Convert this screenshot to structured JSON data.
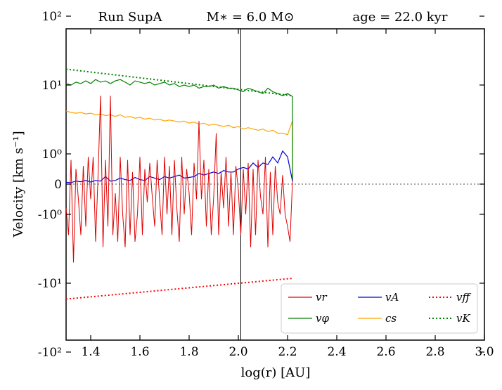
{
  "chart_data": {
    "type": "line",
    "title_parts": [
      "Run SupA",
      "M∗ = 6.0 M⊙",
      "age = 22.0 kyr"
    ],
    "xlabel": "log(r) [AU]",
    "ylabel": "Velocity [km s⁻¹]",
    "xlim": [
      1.3,
      3.0
    ],
    "yscale": "symlog",
    "ylim": [
      -100,
      100
    ],
    "x_ticks": [
      "1.4",
      "1.6",
      "1.8",
      "2.0",
      "2.2",
      "2.4",
      "2.6",
      "2.8",
      "3.0"
    ],
    "y_tick_labels": [
      "10²",
      "10¹",
      "10⁰",
      "0",
      "-10⁰",
      "-10¹",
      "-10²"
    ],
    "vertical_line_x": 2.01,
    "horizontal_zero_line": true,
    "series": [
      {
        "name": "v_r",
        "label": "vr",
        "color": "#e00000",
        "style": "solid",
        "x": [
          1.3,
          1.31,
          1.32,
          1.33,
          1.34,
          1.35,
          1.36,
          1.37,
          1.38,
          1.39,
          1.4,
          1.41,
          1.42,
          1.43,
          1.44,
          1.45,
          1.46,
          1.47,
          1.48,
          1.49,
          1.5,
          1.51,
          1.52,
          1.53,
          1.54,
          1.55,
          1.56,
          1.57,
          1.58,
          1.59,
          1.6,
          1.61,
          1.62,
          1.63,
          1.64,
          1.65,
          1.66,
          1.67,
          1.68,
          1.69,
          1.7,
          1.71,
          1.72,
          1.73,
          1.74,
          1.75,
          1.76,
          1.77,
          1.78,
          1.79,
          1.8,
          1.81,
          1.82,
          1.83,
          1.84,
          1.85,
          1.86,
          1.87,
          1.88,
          1.89,
          1.9,
          1.91,
          1.92,
          1.93,
          1.94,
          1.95,
          1.96,
          1.97,
          1.98,
          1.99,
          2.0,
          2.01,
          2.02,
          2.03,
          2.04,
          2.05,
          2.06,
          2.07,
          2.08,
          2.09,
          2.1,
          2.11,
          2.12,
          2.13,
          2.14,
          2.15,
          2.16,
          2.17,
          2.18,
          2.19,
          2.2,
          2.21,
          2.22
        ],
        "y": [
          -0.8,
          -2.0,
          0.8,
          -5.0,
          0.5,
          -0.5,
          -2.0,
          0.6,
          -1.5,
          0.9,
          -0.5,
          0.9,
          -2.5,
          0.3,
          7.0,
          -3.0,
          0.8,
          -1.5,
          7.0,
          -2.0,
          -0.3,
          -2.5,
          0.9,
          -1.0,
          -3.0,
          0.8,
          -2.0,
          0.4,
          -2.5,
          -1.0,
          0.9,
          -2.0,
          0.5,
          -0.6,
          0.7,
          -0.4,
          -1.5,
          0.8,
          -0.5,
          -2.0,
          0.9,
          -1.0,
          0.6,
          -2.0,
          0.8,
          -0.8,
          -2.5,
          0.9,
          -1.0,
          0.5,
          -0.3,
          -2.0,
          0.7,
          -0.5,
          3.0,
          -0.5,
          0.8,
          -1.5,
          0.5,
          -2.0,
          -0.4,
          2.0,
          -2.0,
          0.4,
          -0.8,
          0.9,
          -1.5,
          0.4,
          -2.0,
          0.6,
          -0.2,
          -2.0,
          0.5,
          -1.0,
          0.7,
          -3.0,
          0.5,
          -2.0,
          0.8,
          -0.4,
          -1.0,
          0.9,
          -3.0,
          0.4,
          -2.0,
          0.6,
          -0.6,
          -1.0,
          0.3,
          -1.0,
          -1.5,
          -2.5,
          0.1
        ]
      },
      {
        "name": "v_phi",
        "label": "vφ",
        "color": "#008000",
        "style": "solid",
        "x": [
          1.3,
          1.32,
          1.34,
          1.36,
          1.38,
          1.4,
          1.42,
          1.44,
          1.46,
          1.48,
          1.5,
          1.52,
          1.54,
          1.56,
          1.58,
          1.6,
          1.62,
          1.64,
          1.66,
          1.68,
          1.7,
          1.72,
          1.74,
          1.76,
          1.78,
          1.8,
          1.82,
          1.84,
          1.86,
          1.88,
          1.9,
          1.92,
          1.94,
          1.96,
          1.98,
          2.0,
          2.02,
          2.04,
          2.06,
          2.08,
          2.1,
          2.12,
          2.14,
          2.16,
          2.18,
          2.2,
          2.22,
          2.22
        ],
        "y": [
          10.5,
          10.0,
          11.0,
          10.5,
          11.5,
          10.5,
          12.0,
          11.0,
          11.5,
          10.5,
          11.5,
          12.0,
          11.0,
          10.0,
          11.5,
          11.0,
          10.5,
          11.0,
          10.0,
          10.5,
          11.0,
          10.0,
          10.5,
          9.5,
          10.0,
          9.5,
          10.0,
          9.0,
          9.5,
          9.5,
          10.0,
          9.0,
          9.5,
          9.0,
          9.0,
          8.5,
          8.0,
          9.0,
          8.5,
          8.0,
          7.5,
          9.0,
          8.0,
          7.5,
          7.0,
          7.5,
          6.8,
          0.1
        ]
      },
      {
        "name": "v_A",
        "label": "vA",
        "color": "#0000e0",
        "style": "solid",
        "x": [
          1.3,
          1.32,
          1.34,
          1.36,
          1.38,
          1.4,
          1.42,
          1.44,
          1.46,
          1.48,
          1.5,
          1.52,
          1.54,
          1.56,
          1.58,
          1.6,
          1.62,
          1.64,
          1.66,
          1.68,
          1.7,
          1.72,
          1.74,
          1.76,
          1.78,
          1.8,
          1.82,
          1.84,
          1.86,
          1.88,
          1.9,
          1.92,
          1.94,
          1.96,
          1.98,
          2.0,
          2.02,
          2.04,
          2.06,
          2.08,
          2.1,
          2.12,
          2.14,
          2.16,
          2.18,
          2.2,
          2.22
        ],
        "y": [
          0.06,
          0.05,
          0.1,
          0.08,
          0.12,
          0.07,
          0.12,
          0.1,
          0.25,
          0.1,
          0.12,
          0.2,
          0.15,
          0.12,
          0.22,
          0.15,
          0.12,
          0.25,
          0.2,
          0.15,
          0.25,
          0.2,
          0.25,
          0.3,
          0.2,
          0.22,
          0.25,
          0.35,
          0.3,
          0.35,
          0.4,
          0.35,
          0.45,
          0.4,
          0.4,
          0.5,
          0.55,
          0.5,
          0.7,
          0.55,
          0.7,
          0.65,
          0.9,
          0.7,
          1.1,
          0.9,
          0.1
        ]
      },
      {
        "name": "c_s",
        "label": "cs",
        "color": "#ffa500",
        "style": "solid",
        "x": [
          1.3,
          1.32,
          1.34,
          1.36,
          1.38,
          1.4,
          1.42,
          1.44,
          1.46,
          1.48,
          1.5,
          1.52,
          1.54,
          1.56,
          1.58,
          1.6,
          1.62,
          1.64,
          1.66,
          1.68,
          1.7,
          1.72,
          1.74,
          1.76,
          1.78,
          1.8,
          1.82,
          1.84,
          1.86,
          1.88,
          1.9,
          1.92,
          1.94,
          1.96,
          1.98,
          2.0,
          2.02,
          2.04,
          2.06,
          2.08,
          2.1,
          2.12,
          2.14,
          2.16,
          2.18,
          2.2,
          2.22,
          2.22
        ],
        "y": [
          4.2,
          4.0,
          3.9,
          4.0,
          3.8,
          3.9,
          3.7,
          3.8,
          3.6,
          3.7,
          3.5,
          3.7,
          3.4,
          3.5,
          3.3,
          3.4,
          3.2,
          3.3,
          3.1,
          3.2,
          3.0,
          3.1,
          3.0,
          2.9,
          3.0,
          2.8,
          2.9,
          2.7,
          2.8,
          2.6,
          2.7,
          2.6,
          2.5,
          2.6,
          2.4,
          2.5,
          2.3,
          2.4,
          2.3,
          2.2,
          2.3,
          2.1,
          2.2,
          2.0,
          2.0,
          1.9,
          3.0,
          0.1
        ]
      },
      {
        "name": "v_ff",
        "label": "vff",
        "color": "#ff0000",
        "style": "dotted",
        "x": [
          1.3,
          2.22
        ],
        "y": [
          -17.0,
          -8.5
        ]
      },
      {
        "name": "v_K",
        "label": "vK",
        "color": "#008000",
        "style": "dotted",
        "x": [
          1.3,
          2.22
        ],
        "y": [
          17.0,
          7.0
        ]
      }
    ],
    "legend": {
      "position": "lower-right",
      "columns": 3,
      "order": [
        "v_r",
        "v_A",
        "v_ff",
        "v_phi",
        "c_s",
        "v_K"
      ]
    }
  }
}
